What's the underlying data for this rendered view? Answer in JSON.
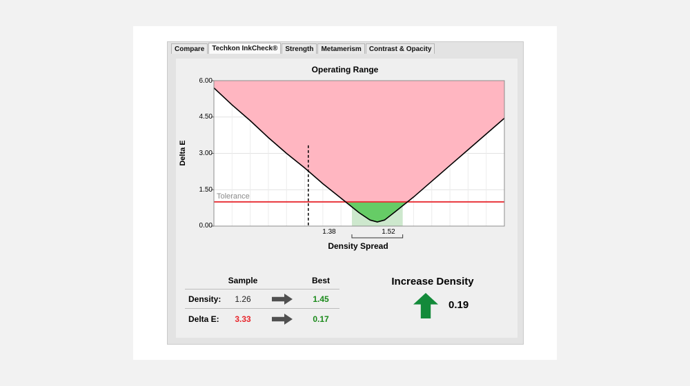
{
  "tabs": [
    {
      "label": "Compare",
      "active": false
    },
    {
      "label": "Techkon InkCheck®",
      "active": true
    },
    {
      "label": "Strength",
      "active": false
    },
    {
      "label": "Metamerism",
      "active": false
    },
    {
      "label": "Contrast & Opacity",
      "active": false
    }
  ],
  "chart_data": {
    "type": "line",
    "title": "Operating Range",
    "ylabel": "Delta E",
    "xlabel": "Density Spread",
    "yticks": [
      "6.00",
      "4.50",
      "3.00",
      "1.50",
      "0.00"
    ],
    "ylim": [
      0,
      6
    ],
    "xlim": [
      1.0,
      1.8
    ],
    "density_spread": [
      "1.38",
      "1.52"
    ],
    "tolerance": {
      "label": "Tolerance",
      "value": 1.0
    },
    "curve": {
      "x": [
        1.0,
        1.05,
        1.1,
        1.15,
        1.2,
        1.25,
        1.3,
        1.35,
        1.4,
        1.43,
        1.45,
        1.47,
        1.5,
        1.55,
        1.6,
        1.65,
        1.7,
        1.75,
        1.8
      ],
      "y": [
        5.7,
        5.0,
        4.35,
        3.65,
        3.0,
        2.4,
        1.75,
        1.15,
        0.55,
        0.25,
        0.17,
        0.25,
        0.6,
        1.2,
        1.85,
        2.5,
        3.15,
        3.8,
        4.45
      ]
    },
    "sample_marker": {
      "x": 1.26,
      "y": 3.33
    },
    "colors": {
      "out_of_range": "#ffb6c1",
      "in_tolerance": "#66cc66",
      "spread_band": "#cde8cd",
      "tolerance_line": "#e8343a",
      "curve": "#000000"
    },
    "grid": true
  },
  "table": {
    "headers": {
      "sample": "Sample",
      "best": "Best"
    },
    "rows": [
      {
        "label": "Density:",
        "sample": "1.26",
        "best": "1.45",
        "sample_color": "#222222",
        "best_color": "#1a8a1a"
      },
      {
        "label": "Delta E:",
        "sample": "3.33",
        "best": "0.17",
        "sample_color": "#e8242a",
        "best_color": "#1a8a1a"
      }
    ]
  },
  "recommendation": {
    "title": "Increase Density",
    "value": "0.19",
    "icon": "up-arrow-icon",
    "color": "#138a3a"
  }
}
